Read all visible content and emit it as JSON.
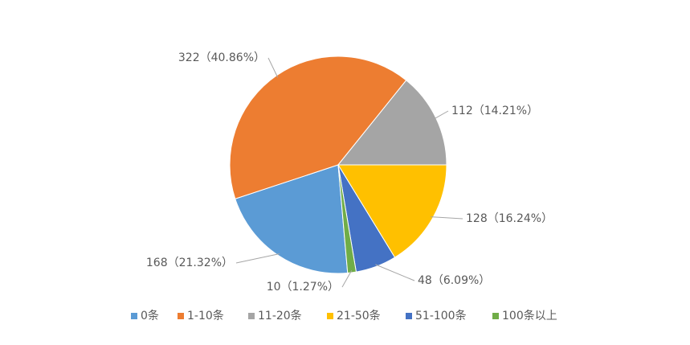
{
  "chart_data": {
    "type": "pie",
    "categories": [
      "0条",
      "1-10条",
      "11-20条",
      "21-50条",
      "51-100条",
      "100条以上"
    ],
    "values": [
      168,
      322,
      112,
      128,
      48,
      10
    ],
    "value_labels": [
      "168（21.32%）",
      "322（40.86%）",
      "112（14.21%）",
      "128（16.24%）",
      "48（6.09%）",
      "10（1.27%）"
    ],
    "colors": [
      "#5b9bd5",
      "#ed7d31",
      "#a5a5a5",
      "#ffc000",
      "#4472c4",
      "#70ad47"
    ],
    "legend": "bottom"
  }
}
